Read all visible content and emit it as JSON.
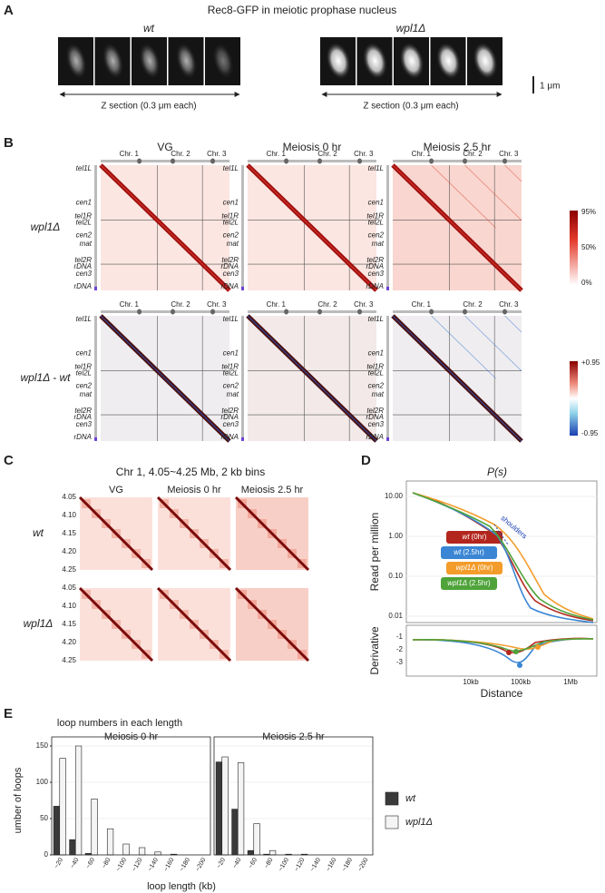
{
  "panel_a": {
    "label": "A",
    "title": "Rec8-GFP in meiotic prophase nucleus",
    "conditions": [
      "wt",
      "wpl1Δ"
    ],
    "axis_label": "Z section (0.3 μm each)",
    "scale_bar": "1 μm"
  },
  "panel_b": {
    "label": "B",
    "columns": [
      "VG",
      "Meiosis 0 hr",
      "Meiosis 2.5 hr"
    ],
    "rows": [
      "wpl1Δ",
      "wpl1Δ - wt"
    ],
    "chromosomes": [
      "Chr. 1",
      "Chr. 2",
      "Chr. 3"
    ],
    "loci": [
      "tel1L",
      "cen1",
      "tel1R",
      "tel2L",
      "cen2",
      "mat",
      "tel2R",
      "rDNA",
      "cen3",
      "rDNA"
    ],
    "colorbar_top": [
      "95%",
      "50%",
      "0%"
    ],
    "colorbar_bottom": [
      "+0.95",
      "-0.95"
    ]
  },
  "panel_c": {
    "label": "C",
    "title": "Chr 1, 4.05~4.25 Mb, 2 kb bins",
    "columns": [
      "VG",
      "Meiosis 0 hr",
      "Meiosis 2.5 hr"
    ],
    "rows": [
      "wt",
      "wpl1Δ"
    ],
    "ticks": [
      "4.05",
      "4.10",
      "4.15",
      "4.20",
      "4.25"
    ]
  },
  "panel_d": {
    "label": "D",
    "title": "P(s)",
    "y_label": "Read per million",
    "y2_label": "Derivative",
    "x_label": "Distance",
    "yticks": [
      "10.00",
      "1.00",
      "0.10",
      "0.01"
    ],
    "y2ticks": [
      "-1",
      "-2",
      "-3"
    ],
    "xticks": [
      "10kb",
      "100kb",
      "1Mb"
    ],
    "annotation": "shoulders",
    "legend": [
      {
        "strain": "wt",
        "time": "(0hr)",
        "color": "#b3261e"
      },
      {
        "strain": "wt",
        "time": "(2.5hr)",
        "color": "#3a86d4"
      },
      {
        "strain": "wpl1Δ",
        "time": "(0hr)",
        "color": "#f39c2b"
      },
      {
        "strain": "wpl1Δ",
        "time": "(2.5hr)",
        "color": "#4fa33a"
      }
    ]
  },
  "panel_e": {
    "label": "E",
    "title": "loop numbers in each length"
  },
  "chart_data": [
    {
      "type": "bar",
      "title": "Meiosis 0 hr",
      "y_label": "umber of loops",
      "x_label": "loop length (kb)",
      "categories": [
        "~20",
        "~40",
        "~60",
        "~80",
        "~100",
        "~120",
        "~140",
        "~160",
        "~180",
        "~200"
      ],
      "series": [
        {
          "name": "wt",
          "color": "#3a3a3a",
          "values": [
            67,
            21,
            2,
            0,
            0,
            0,
            0,
            0,
            0,
            0
          ]
        },
        {
          "name": "wpl1Δ",
          "color": "#f4f4f4",
          "values": [
            133,
            150,
            77,
            36,
            15,
            10,
            4,
            1,
            0,
            0
          ]
        }
      ],
      "ylim": [
        0,
        150
      ],
      "yticks": [
        0,
        50,
        100,
        150
      ],
      "grid": true
    },
    {
      "type": "bar",
      "title": "Meiosis 2.5 hr",
      "categories": [
        "~20",
        "~40",
        "~60",
        "~80",
        "~100",
        "~120",
        "~140",
        "~160",
        "~180",
        "~200"
      ],
      "series": [
        {
          "name": "wt",
          "color": "#3a3a3a",
          "values": [
            128,
            63,
            6,
            1,
            0,
            0,
            0,
            0,
            0,
            0
          ]
        },
        {
          "name": "wpl1Δ",
          "color": "#f4f4f4",
          "values": [
            135,
            127,
            43,
            6,
            1,
            1,
            0,
            0,
            0,
            0
          ]
        }
      ],
      "ylim": [
        0,
        150
      ],
      "yticks": [
        0,
        50,
        100,
        150
      ],
      "grid": true
    }
  ]
}
